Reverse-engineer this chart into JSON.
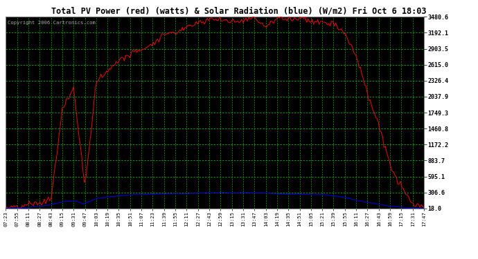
{
  "title": "Total PV Power (red) (watts) & Solar Radiation (blue) (W/m2) Fri Oct 6 18:03",
  "yticks": [
    18.0,
    306.6,
    595.1,
    883.7,
    1172.2,
    1460.8,
    1749.3,
    2037.9,
    2326.4,
    2615.0,
    2903.5,
    3192.1,
    3480.6
  ],
  "ymin": 18.0,
  "ymax": 3480.6,
  "copyright": "Copyright 2006 Cartronics.com",
  "bg_color": "#000000",
  "grid_color": "#00bb00",
  "red_line": "#ff0000",
  "blue_line": "#0000ff",
  "xtick_labels": [
    "07:23",
    "07:55",
    "08:11",
    "08:27",
    "08:43",
    "09:15",
    "09:31",
    "09:47",
    "10:03",
    "10:19",
    "10:35",
    "10:51",
    "11:07",
    "11:23",
    "11:39",
    "11:55",
    "12:11",
    "12:27",
    "12:43",
    "12:59",
    "13:15",
    "13:31",
    "13:47",
    "14:03",
    "14:19",
    "14:35",
    "14:51",
    "15:05",
    "15:21",
    "15:39",
    "15:55",
    "16:11",
    "16:27",
    "16:43",
    "16:59",
    "17:15",
    "17:31",
    "17:47"
  ],
  "outer_bg": "#ffffff",
  "pv_power": [
    18,
    30,
    80,
    120,
    180,
    1800,
    2200,
    400,
    2300,
    2500,
    2700,
    2800,
    2900,
    3000,
    3100,
    3200,
    3280,
    3380,
    3420,
    3460,
    3470,
    3480,
    3460,
    3200,
    3450,
    3460,
    3470,
    3400,
    3380,
    3350,
    3200,
    2800,
    2200,
    1500,
    800,
    400,
    100,
    18
  ],
  "solar_rad": [
    18,
    22,
    40,
    60,
    80,
    140,
    160,
    110,
    200,
    230,
    250,
    260,
    270,
    275,
    280,
    285,
    290,
    295,
    298,
    300,
    302,
    305,
    300,
    295,
    290,
    285,
    280,
    270,
    260,
    240,
    210,
    170,
    130,
    90,
    60,
    40,
    25,
    18
  ]
}
